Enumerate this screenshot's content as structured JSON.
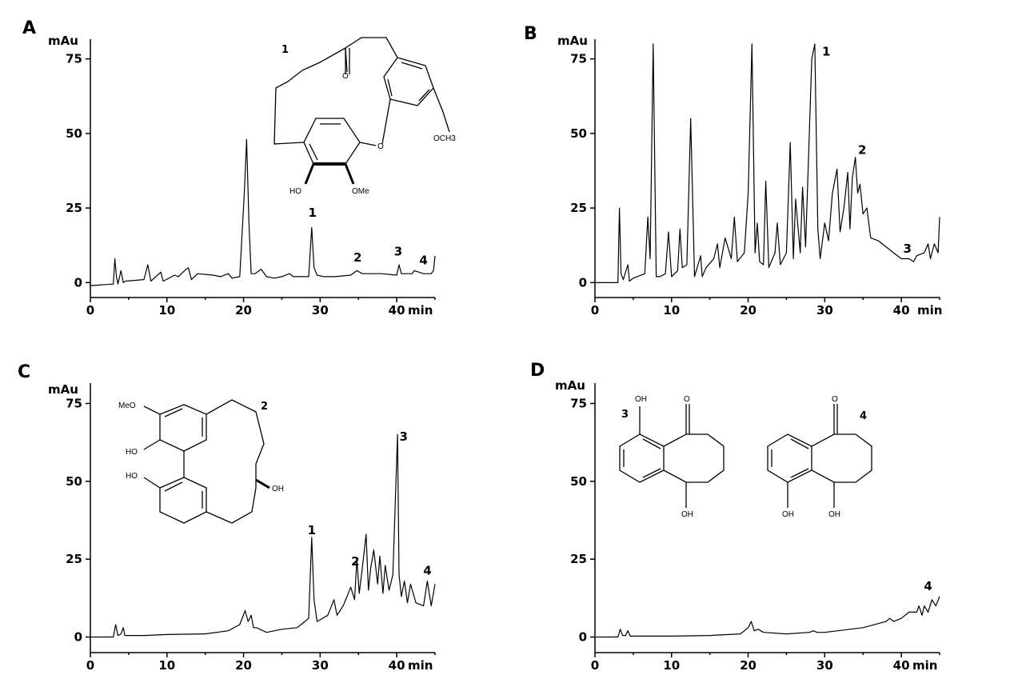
{
  "figure": {
    "panels": [
      {
        "letter": "A",
        "y_unit": "mAu",
        "x_unit": "min"
      },
      {
        "letter": "B",
        "y_unit": "mAu",
        "x_unit": "min"
      },
      {
        "letter": "C",
        "y_unit": "mAu",
        "x_unit": "min"
      },
      {
        "letter": "D",
        "y_unit": "mAu",
        "x_unit": "min"
      }
    ],
    "structures": {
      "compound_1": {
        "number": "1",
        "labels": [
          "O",
          "O",
          "OCH3",
          "HO",
          "OMe"
        ]
      },
      "compound_2": {
        "number": "2",
        "labels": [
          "MeO",
          "HO",
          "HO",
          "OH"
        ]
      },
      "compound_3": {
        "number": "3",
        "labels": [
          "OH",
          "O",
          "OH"
        ]
      },
      "compound_4": {
        "number": "4",
        "labels": [
          "O",
          "OH",
          "OH"
        ]
      }
    }
  },
  "chart_data": [
    {
      "type": "line",
      "panel": "A",
      "xlabel": "min",
      "ylabel": "mAu",
      "xlim": [
        0,
        45
      ],
      "ylim": [
        -5,
        80
      ],
      "xticks": [
        0,
        10,
        20,
        30,
        40
      ],
      "yticks": [
        0,
        25,
        50,
        75
      ],
      "grid": false,
      "series": [
        {
          "x": [
            0,
            3,
            3.2,
            3.4,
            3.6,
            4,
            4.3,
            4.6,
            7,
            7.5,
            7.9,
            9.2,
            9.5,
            9.9,
            11,
            11.5,
            12.5,
            12.8,
            13.2,
            14,
            16,
            17,
            18,
            18.5,
            19.5,
            20.1,
            20.4,
            20.7,
            21,
            21.5,
            22.3,
            23,
            24,
            25,
            26,
            26.5,
            27,
            28.5,
            28.9,
            29.2,
            29.6,
            30.5,
            32,
            34,
            34.8,
            35.5,
            37,
            38,
            40,
            40.3,
            40.6,
            42,
            42.3,
            43.5,
            44.5,
            44.8,
            45
          ],
          "y": [
            -1,
            -0.5,
            8,
            2,
            -0.5,
            4,
            0,
            0.5,
            1,
            6,
            0.5,
            3.5,
            0.5,
            1,
            2.5,
            2,
            4.5,
            5,
            1,
            3,
            2.5,
            2,
            3,
            1.5,
            2,
            30,
            48,
            20,
            3,
            3,
            4.5,
            2,
            1.5,
            2,
            3,
            2,
            2,
            2,
            18.5,
            5,
            2.5,
            2,
            2,
            2.5,
            4,
            3,
            3,
            3,
            2.5,
            6,
            3,
            3,
            4,
            3,
            3,
            4,
            9
          ]
        }
      ],
      "peak_labels": [
        {
          "text": "1",
          "x": 29,
          "y": 21
        },
        {
          "text": "2",
          "x": 34.9,
          "y": 6
        },
        {
          "text": "3",
          "x": 40.2,
          "y": 8
        },
        {
          "text": "4",
          "x": 43.5,
          "y": 5
        }
      ]
    },
    {
      "type": "line",
      "panel": "B",
      "xlabel": "min",
      "ylabel": "mAu",
      "xlim": [
        0,
        45
      ],
      "ylim": [
        -5,
        80
      ],
      "xticks": [
        0,
        10,
        20,
        30,
        40
      ],
      "yticks": [
        0,
        25,
        50,
        75
      ],
      "grid": false,
      "series": [
        {
          "x": [
            0,
            3,
            3.2,
            3.4,
            3.7,
            4.3,
            4.5,
            5,
            6.5,
            6.9,
            7.2,
            7.6,
            8,
            8.5,
            9.2,
            9.6,
            10,
            10.8,
            11.1,
            11.4,
            12,
            12.5,
            13,
            13.8,
            14,
            14.5,
            15.5,
            16,
            16.3,
            17,
            17.8,
            18.2,
            18.6,
            19.5,
            20,
            20.5,
            20.9,
            21.2,
            21.5,
            22,
            22.3,
            22.7,
            23.5,
            23.8,
            24.2,
            25,
            25.5,
            25.9,
            26.2,
            26.8,
            27.1,
            27.5,
            28.3,
            28.7,
            29.1,
            29.4,
            30,
            30.5,
            31,
            31.6,
            32,
            32.5,
            33,
            33.3,
            33.6,
            34,
            34.3,
            34.6,
            35,
            35.5,
            36,
            37,
            38,
            39,
            40,
            41,
            41.6,
            42,
            43,
            43.5,
            43.8,
            44.3,
            44.8,
            45
          ],
          "y": [
            0,
            0,
            25,
            3,
            1,
            6,
            0.5,
            1.5,
            3,
            22,
            8,
            80,
            2,
            2,
            3,
            17,
            2,
            4,
            18,
            5,
            6,
            55,
            2,
            9,
            2,
            5,
            8,
            13,
            5,
            15,
            8,
            22,
            7,
            10,
            30,
            80,
            10,
            20,
            7,
            6,
            34,
            5,
            10,
            20,
            6,
            10,
            47,
            8,
            28,
            10,
            32,
            12,
            75,
            80,
            18,
            8,
            20,
            14,
            30,
            38,
            17,
            25,
            37,
            18,
            35,
            42,
            30,
            33,
            23,
            25,
            15,
            14,
            12,
            10,
            8,
            8,
            7,
            9,
            10,
            13,
            8,
            13,
            10,
            22
          ]
        }
      ],
      "peak_labels": [
        {
          "text": "1",
          "x": 30.2,
          "y": 75
        },
        {
          "text": "2",
          "x": 34.9,
          "y": 42
        },
        {
          "text": "3",
          "x": 40.8,
          "y": 9
        }
      ]
    },
    {
      "type": "line",
      "panel": "C",
      "xlabel": "min",
      "ylabel": "mAu",
      "xlim": [
        0,
        45
      ],
      "ylim": [
        -5,
        80
      ],
      "xticks": [
        0,
        10,
        20,
        30,
        40
      ],
      "yticks": [
        0,
        25,
        50,
        75
      ],
      "grid": false,
      "series": [
        {
          "x": [
            0,
            3,
            3.3,
            3.6,
            4,
            4.3,
            4.5,
            7,
            10,
            15,
            18,
            19.5,
            20.2,
            20.6,
            21,
            21.3,
            21.7,
            23,
            25,
            27,
            28.5,
            28.9,
            29.2,
            29.6,
            31,
            31.8,
            32.2,
            33,
            34,
            34.5,
            34.8,
            35.1,
            35.5,
            36,
            36.3,
            36.6,
            37,
            37.5,
            37.8,
            38.2,
            38.5,
            39,
            39.5,
            40.1,
            40.3,
            40.6,
            41,
            41.4,
            41.8,
            42.5,
            43.5,
            44,
            44.5,
            45
          ],
          "y": [
            0,
            0,
            4,
            0.5,
            1,
            3,
            0.5,
            0.5,
            0.8,
            1,
            2,
            4,
            8.5,
            5,
            7,
            3,
            3,
            1.5,
            2.5,
            3,
            6,
            32,
            12,
            5,
            7,
            12,
            7,
            10,
            16,
            12,
            25,
            14,
            22,
            33,
            15,
            22,
            28,
            17,
            26,
            14,
            23,
            15,
            20,
            65,
            20,
            13,
            18,
            11,
            17,
            11,
            10,
            18,
            10,
            17
          ]
        }
      ],
      "peak_labels": [
        {
          "text": "1",
          "x": 28.9,
          "y": 32
        },
        {
          "text": "2",
          "x": 34.6,
          "y": 22
        },
        {
          "text": "3",
          "x": 40.9,
          "y": 62
        },
        {
          "text": "4",
          "x": 44,
          "y": 19
        }
      ]
    },
    {
      "type": "line",
      "panel": "D",
      "xlabel": "min",
      "ylabel": "mAu",
      "xlim": [
        0,
        45
      ],
      "ylim": [
        -5,
        80
      ],
      "xticks": [
        0,
        10,
        20,
        30,
        40
      ],
      "yticks": [
        0,
        25,
        50,
        75
      ],
      "grid": false,
      "series": [
        {
          "x": [
            0,
            3,
            3.3,
            3.6,
            4,
            4.3,
            4.6,
            10,
            15,
            19,
            20,
            20.4,
            20.8,
            21.3,
            22,
            25,
            28,
            28.5,
            29,
            30,
            35,
            38,
            38.5,
            39,
            40,
            41,
            42,
            42.3,
            42.7,
            43,
            43.5,
            44,
            44.5,
            45
          ],
          "y": [
            0,
            0,
            2.5,
            0.5,
            0.5,
            2,
            0.3,
            0.3,
            0.5,
            1,
            3,
            5,
            2,
            2.5,
            1.5,
            1,
            1.5,
            2,
            1.5,
            1.5,
            3,
            5,
            6,
            5,
            6,
            8,
            8,
            10,
            7,
            10,
            8,
            12,
            10,
            13
          ]
        }
      ],
      "peak_labels": [
        {
          "text": "4",
          "x": 43.5,
          "y": 14
        }
      ]
    }
  ]
}
